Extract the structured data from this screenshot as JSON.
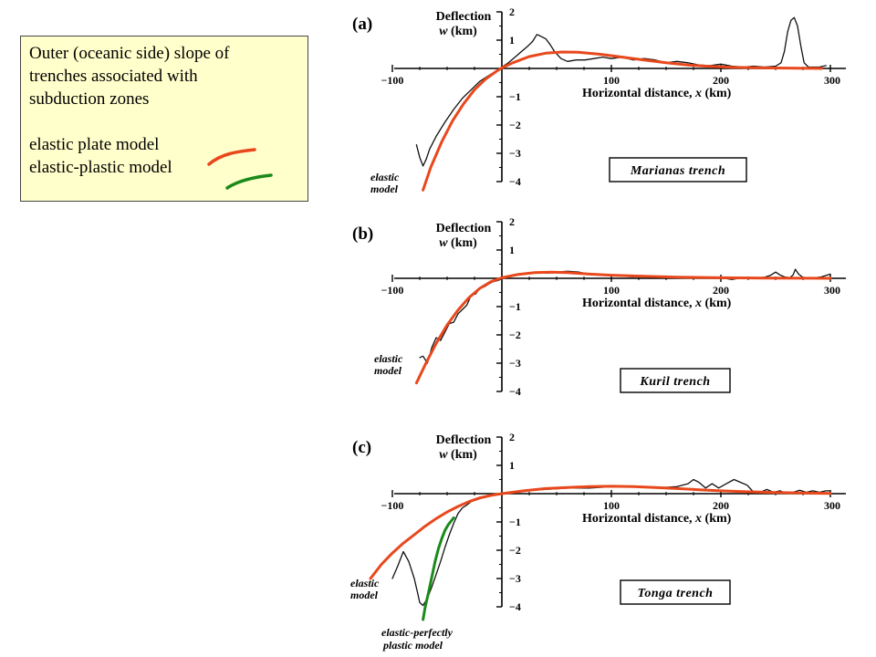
{
  "legend": {
    "title_lines": [
      "Outer (oceanic side) slope of",
      "trenches associated with",
      "subduction zones"
    ],
    "entries": [
      {
        "label": "elastic plate model",
        "color": "#e8481c"
      },
      {
        "label": "elastic-plastic model",
        "color": "#1a8a1a"
      }
    ]
  },
  "axis_text": {
    "y_title_1": "Deflection",
    "y_title_2_italic": "w",
    "y_title_2_rest": " (km)",
    "x_title": "Horizontal distance, ",
    "x_title_italic": "x",
    "x_title_rest": " (km)"
  },
  "colors": {
    "elastic": "#e8481c",
    "elastic_plastic": "#1a8a1a",
    "observed": "#111111",
    "legend_bg": "#ffffcc"
  },
  "chart_data": [
    {
      "type": "line",
      "panel": "(a)",
      "trench_label": "Marianas trench",
      "model_labels": [
        "elastic",
        "model"
      ],
      "xlim": [
        -100,
        300
      ],
      "ylim": [
        -4,
        2
      ],
      "x_ticks": [
        "−100",
        "100",
        "200",
        "300"
      ],
      "y_ticks": [
        "2",
        "1",
        "−1",
        "−2",
        "−3",
        "−4"
      ],
      "series": [
        {
          "role": "observed",
          "points": [
            [
              -78,
              -2.7
            ],
            [
              -75,
              -3.15
            ],
            [
              -72,
              -3.45
            ],
            [
              -69,
              -3.2
            ],
            [
              -66,
              -2.85
            ],
            [
              -60,
              -2.4
            ],
            [
              -52,
              -1.9
            ],
            [
              -44,
              -1.45
            ],
            [
              -36,
              -1.05
            ],
            [
              -28,
              -0.75
            ],
            [
              -20,
              -0.45
            ],
            [
              -12,
              -0.25
            ],
            [
              -5,
              -0.08
            ],
            [
              0,
              0.05
            ],
            [
              6,
              0.2
            ],
            [
              12,
              0.4
            ],
            [
              18,
              0.6
            ],
            [
              24,
              0.8
            ],
            [
              28,
              0.95
            ],
            [
              32,
              1.2
            ],
            [
              35,
              1.15
            ],
            [
              40,
              1.05
            ],
            [
              44,
              0.85
            ],
            [
              48,
              0.6
            ],
            [
              54,
              0.35
            ],
            [
              60,
              0.25
            ],
            [
              68,
              0.3
            ],
            [
              76,
              0.3
            ],
            [
              84,
              0.35
            ],
            [
              92,
              0.4
            ],
            [
              100,
              0.35
            ],
            [
              110,
              0.4
            ],
            [
              120,
              0.3
            ],
            [
              130,
              0.35
            ],
            [
              140,
              0.3
            ],
            [
              150,
              0.2
            ],
            [
              160,
              0.25
            ],
            [
              170,
              0.2
            ],
            [
              180,
              0.12
            ],
            [
              190,
              0.1
            ],
            [
              200,
              0.15
            ],
            [
              210,
              0.08
            ],
            [
              220,
              0.05
            ],
            [
              230,
              0.08
            ],
            [
              240,
              0.05
            ],
            [
              250,
              0.08
            ],
            [
              255,
              0.2
            ],
            [
              258,
              0.6
            ],
            [
              261,
              1.3
            ],
            [
              264,
              1.7
            ],
            [
              267,
              1.8
            ],
            [
              270,
              1.5
            ],
            [
              273,
              0.8
            ],
            [
              276,
              0.2
            ],
            [
              280,
              0.05
            ],
            [
              290,
              0.05
            ],
            [
              296,
              0.1
            ]
          ]
        },
        {
          "role": "elastic-model",
          "points": [
            [
              -72,
              -4.3
            ],
            [
              -65,
              -3.5
            ],
            [
              -55,
              -2.6
            ],
            [
              -45,
              -1.85
            ],
            [
              -35,
              -1.25
            ],
            [
              -25,
              -0.75
            ],
            [
              -15,
              -0.38
            ],
            [
              -5,
              -0.1
            ],
            [
              0,
              0.02
            ],
            [
              10,
              0.2
            ],
            [
              25,
              0.42
            ],
            [
              40,
              0.54
            ],
            [
              55,
              0.58
            ],
            [
              70,
              0.57
            ],
            [
              90,
              0.5
            ],
            [
              110,
              0.4
            ],
            [
              130,
              0.3
            ],
            [
              150,
              0.2
            ],
            [
              170,
              0.12
            ],
            [
              190,
              0.07
            ],
            [
              210,
              0.04
            ],
            [
              240,
              0.02
            ],
            [
              270,
              0.01
            ],
            [
              292,
              0.0
            ]
          ]
        }
      ]
    },
    {
      "type": "line",
      "panel": "(b)",
      "trench_label": "Kuril trench",
      "model_labels": [
        "elastic",
        "model"
      ],
      "xlim": [
        -100,
        300
      ],
      "ylim": [
        -4,
        2
      ],
      "x_ticks": [
        "−100",
        "100",
        "200",
        "300"
      ],
      "y_ticks": [
        "2",
        "1",
        "−1",
        "−2",
        "−3",
        "−4"
      ],
      "series": [
        {
          "role": "observed",
          "points": [
            [
              -75,
              -2.8
            ],
            [
              -72,
              -2.75
            ],
            [
              -68,
              -3.0
            ],
            [
              -64,
              -2.45
            ],
            [
              -60,
              -2.1
            ],
            [
              -56,
              -2.2
            ],
            [
              -52,
              -1.9
            ],
            [
              -48,
              -1.6
            ],
            [
              -44,
              -1.55
            ],
            [
              -40,
              -1.25
            ],
            [
              -36,
              -1.1
            ],
            [
              -32,
              -0.95
            ],
            [
              -28,
              -0.6
            ],
            [
              -24,
              -0.55
            ],
            [
              -20,
              -0.35
            ],
            [
              -16,
              -0.3
            ],
            [
              -12,
              -0.2
            ],
            [
              -8,
              -0.12
            ],
            [
              -4,
              -0.08
            ],
            [
              0,
              -0.02
            ],
            [
              5,
              0.05
            ],
            [
              10,
              0.12
            ],
            [
              18,
              0.15
            ],
            [
              26,
              0.18
            ],
            [
              34,
              0.2
            ],
            [
              42,
              0.18
            ],
            [
              50,
              0.22
            ],
            [
              60,
              0.25
            ],
            [
              70,
              0.22
            ],
            [
              80,
              0.15
            ],
            [
              90,
              0.12
            ],
            [
              100,
              0.1
            ],
            [
              110,
              0.08
            ],
            [
              120,
              0.05
            ],
            [
              130,
              0.08
            ],
            [
              140,
              0.05
            ],
            [
              150,
              0.08
            ],
            [
              160,
              0.02
            ],
            [
              170,
              0.05
            ],
            [
              180,
              0.0
            ],
            [
              190,
              0.04
            ],
            [
              200,
              0.02
            ],
            [
              210,
              -0.04
            ],
            [
              220,
              0.02
            ],
            [
              230,
              0.0
            ],
            [
              240,
              0.04
            ],
            [
              245,
              0.1
            ],
            [
              250,
              0.22
            ],
            [
              254,
              0.12
            ],
            [
              258,
              0.05
            ],
            [
              263,
              0.02
            ],
            [
              266,
              0.12
            ],
            [
              268,
              0.32
            ],
            [
              271,
              0.15
            ],
            [
              276,
              0.0
            ],
            [
              286,
              0.02
            ],
            [
              292,
              0.05
            ],
            [
              296,
              0.1
            ],
            [
              300,
              0.15
            ]
          ]
        },
        {
          "role": "elastic-model",
          "points": [
            [
              -78,
              -3.7
            ],
            [
              -70,
              -3.05
            ],
            [
              -60,
              -2.3
            ],
            [
              -50,
              -1.65
            ],
            [
              -40,
              -1.12
            ],
            [
              -30,
              -0.68
            ],
            [
              -20,
              -0.35
            ],
            [
              -10,
              -0.12
            ],
            [
              0,
              0.02
            ],
            [
              15,
              0.14
            ],
            [
              30,
              0.2
            ],
            [
              45,
              0.22
            ],
            [
              60,
              0.2
            ],
            [
              80,
              0.15
            ],
            [
              100,
              0.11
            ],
            [
              130,
              0.07
            ],
            [
              160,
              0.04
            ],
            [
              200,
              0.02
            ],
            [
              240,
              0.01
            ],
            [
              300,
              0.0
            ]
          ]
        }
      ]
    },
    {
      "type": "line",
      "panel": "(c)",
      "trench_label": "Tonga trench",
      "model_labels": [
        "elastic",
        "model"
      ],
      "plastic_model_labels": [
        "elastic-perfectly",
        "plastic model"
      ],
      "xlim": [
        -100,
        300
      ],
      "ylim": [
        -4,
        2
      ],
      "x_ticks": [
        "−100",
        "100",
        "200",
        "300"
      ],
      "y_ticks": [
        "2",
        "1",
        "−1",
        "−2",
        "−3",
        "−4"
      ],
      "series": [
        {
          "role": "observed",
          "points": [
            [
              -100,
              -3.0
            ],
            [
              -95,
              -2.55
            ],
            [
              -90,
              -2.05
            ],
            [
              -85,
              -2.4
            ],
            [
              -80,
              -3.0
            ],
            [
              -77,
              -3.5
            ],
            [
              -75,
              -3.85
            ],
            [
              -72,
              -3.95
            ],
            [
              -68,
              -3.7
            ],
            [
              -64,
              -3.3
            ],
            [
              -60,
              -2.85
            ],
            [
              -56,
              -2.4
            ],
            [
              -52,
              -1.9
            ],
            [
              -48,
              -1.45
            ],
            [
              -44,
              -1.05
            ],
            [
              -40,
              -0.7
            ],
            [
              -36,
              -0.5
            ],
            [
              -32,
              -0.4
            ],
            [
              -28,
              -0.28
            ],
            [
              -22,
              -0.2
            ],
            [
              -16,
              -0.12
            ],
            [
              -10,
              -0.05
            ],
            [
              0,
              0.0
            ],
            [
              10,
              0.05
            ],
            [
              20,
              0.1
            ],
            [
              40,
              0.15
            ],
            [
              60,
              0.2
            ],
            [
              80,
              0.2
            ],
            [
              100,
              0.25
            ],
            [
              120,
              0.25
            ],
            [
              140,
              0.2
            ],
            [
              160,
              0.25
            ],
            [
              170,
              0.35
            ],
            [
              175,
              0.5
            ],
            [
              180,
              0.4
            ],
            [
              186,
              0.2
            ],
            [
              192,
              0.35
            ],
            [
              198,
              0.2
            ],
            [
              205,
              0.35
            ],
            [
              212,
              0.5
            ],
            [
              218,
              0.4
            ],
            [
              224,
              0.3
            ],
            [
              230,
              0.05
            ],
            [
              236,
              0.05
            ],
            [
              242,
              0.15
            ],
            [
              248,
              0.05
            ],
            [
              254,
              0.1
            ],
            [
              260,
              0.0
            ],
            [
              266,
              0.05
            ],
            [
              272,
              0.12
            ],
            [
              278,
              0.05
            ],
            [
              284,
              0.1
            ],
            [
              290,
              0.05
            ],
            [
              296,
              0.1
            ],
            [
              300,
              0.1
            ]
          ]
        },
        {
          "role": "elastic-model",
          "points": [
            [
              -120,
              -3.0
            ],
            [
              -110,
              -2.5
            ],
            [
              -100,
              -2.1
            ],
            [
              -90,
              -1.75
            ],
            [
              -80,
              -1.45
            ],
            [
              -70,
              -1.15
            ],
            [
              -60,
              -0.88
            ],
            [
              -50,
              -0.65
            ],
            [
              -40,
              -0.45
            ],
            [
              -30,
              -0.28
            ],
            [
              -20,
              -0.15
            ],
            [
              -10,
              -0.06
            ],
            [
              0,
              0.0
            ],
            [
              20,
              0.1
            ],
            [
              40,
              0.18
            ],
            [
              60,
              0.22
            ],
            [
              80,
              0.25
            ],
            [
              100,
              0.26
            ],
            [
              120,
              0.25
            ],
            [
              140,
              0.22
            ],
            [
              160,
              0.18
            ],
            [
              180,
              0.14
            ],
            [
              200,
              0.1
            ],
            [
              220,
              0.07
            ],
            [
              250,
              0.04
            ],
            [
              280,
              0.02
            ],
            [
              300,
              0.01
            ]
          ]
        },
        {
          "role": "elastic-plastic-model",
          "points": [
            [
              -72,
              -4.45
            ],
            [
              -70,
              -4.0
            ],
            [
              -67,
              -3.5
            ],
            [
              -64,
              -2.95
            ],
            [
              -61,
              -2.4
            ],
            [
              -58,
              -1.95
            ],
            [
              -55,
              -1.6
            ],
            [
              -52,
              -1.3
            ],
            [
              -49,
              -1.1
            ],
            [
              -46,
              -0.95
            ],
            [
              -44,
              -0.85
            ]
          ]
        }
      ]
    }
  ]
}
